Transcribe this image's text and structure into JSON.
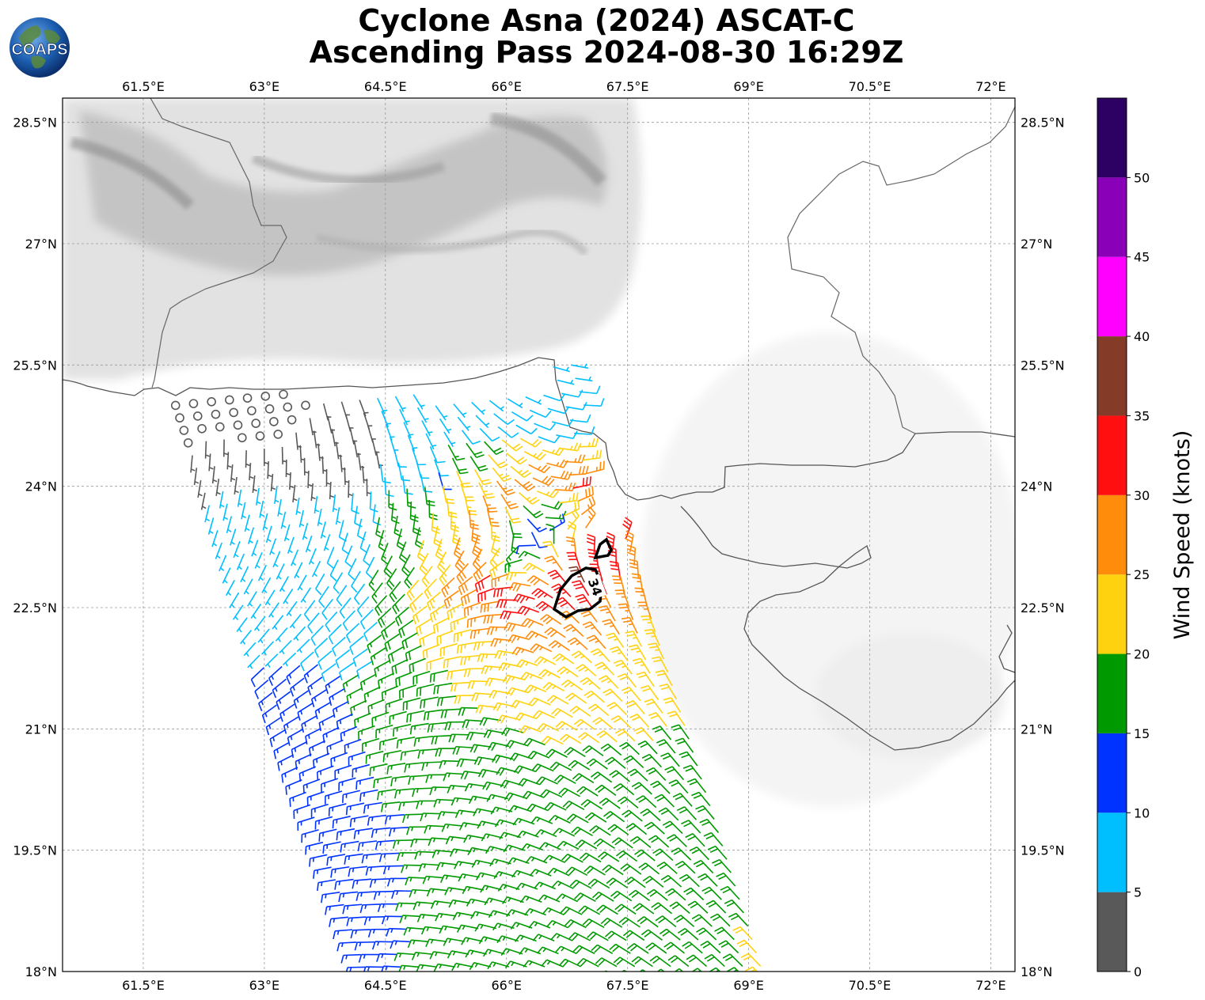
{
  "title": {
    "line1": "Cyclone Asna (2024) ASCAT-C",
    "line2": "Ascending Pass 2024-08-30 16:29Z"
  },
  "logo": {
    "text": "COAPS",
    "icon": "globe-logo-icon"
  },
  "map": {
    "lon_range": [
      60.5,
      72.3
    ],
    "lat_range": [
      18.0,
      28.8
    ],
    "lon_ticks": [
      61.5,
      63.0,
      64.5,
      66.0,
      67.5,
      69.0,
      70.5,
      72.0
    ],
    "lon_tick_labels": [
      "61.5°E",
      "63°E",
      "64.5°E",
      "66°E",
      "67.5°E",
      "69°E",
      "70.5°E",
      "72°E"
    ],
    "lat_ticks": [
      18.0,
      19.5,
      21.0,
      22.5,
      24.0,
      25.5,
      27.0,
      28.5
    ],
    "lat_tick_labels": [
      "18°N",
      "19.5°N",
      "21°N",
      "22.5°N",
      "24°N",
      "25.5°N",
      "27°N",
      "28.5°N"
    ],
    "grid": true,
    "background": "grayscale infrared imagery",
    "storm_center": {
      "lon": 66.4,
      "lat": 23.35
    },
    "contour_label": "34"
  },
  "colorbar": {
    "title": "Wind Speed (knots)",
    "ticks": [
      "0",
      "5",
      "10",
      "15",
      "20",
      "25",
      "30",
      "35",
      "40",
      "45",
      "50"
    ],
    "bins": [
      {
        "min": 0,
        "max": 5,
        "color": "#595959"
      },
      {
        "min": 5,
        "max": 10,
        "color": "#00bfff"
      },
      {
        "min": 10,
        "max": 15,
        "color": "#0033ff"
      },
      {
        "min": 15,
        "max": 20,
        "color": "#009900"
      },
      {
        "min": 20,
        "max": 25,
        "color": "#ffd20f"
      },
      {
        "min": 25,
        "max": 30,
        "color": "#ff8c0a"
      },
      {
        "min": 30,
        "max": 35,
        "color": "#ff0f0f"
      },
      {
        "min": 35,
        "max": 40,
        "color": "#843c28"
      },
      {
        "min": 40,
        "max": 45,
        "color": "#ff00ff"
      },
      {
        "min": 45,
        "max": 50,
        "color": "#8a00b8"
      },
      {
        "min": 50,
        "max": 55,
        "color": "#2d0064"
      }
    ]
  }
}
